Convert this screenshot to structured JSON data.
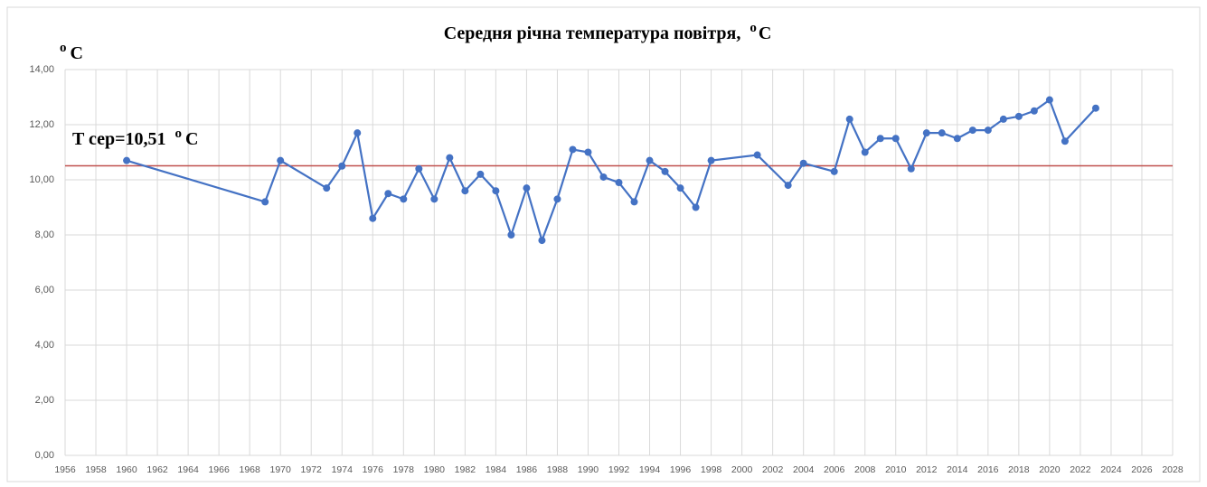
{
  "chart_data": {
    "type": "line",
    "title": {
      "text": "Середня річна температура повітря,",
      "sup": "o",
      "unit": "C"
    },
    "ylabel": {
      "sup": "o",
      "unit": "C"
    },
    "mean_line": {
      "value": 10.51,
      "color": "#c0504d",
      "label": {
        "text": "T сер=10,51",
        "sup": "o",
        "unit": "C"
      }
    },
    "x": [
      1960,
      1969,
      1970,
      1973,
      1974,
      1975,
      1976,
      1977,
      1978,
      1979,
      1980,
      1981,
      1982,
      1983,
      1984,
      1985,
      1986,
      1987,
      1988,
      1989,
      1990,
      1991,
      1992,
      1993,
      1994,
      1995,
      1996,
      1997,
      1998,
      2001,
      2003,
      2004,
      2006,
      2007,
      2008,
      2009,
      2010,
      2011,
      2012,
      2013,
      2014,
      2015,
      2016,
      2017,
      2018,
      2019,
      2020,
      2021,
      2023
    ],
    "series": [
      {
        "color": "#4472c4",
        "values": [
          10.7,
          9.2,
          10.7,
          9.7,
          10.5,
          11.7,
          8.6,
          9.5,
          9.3,
          10.4,
          9.3,
          10.8,
          9.6,
          10.2,
          9.6,
          8.0,
          9.7,
          7.8,
          9.3,
          11.1,
          11.0,
          10.1,
          9.9,
          9.2,
          10.7,
          10.3,
          9.7,
          9.0,
          10.7,
          10.9,
          9.8,
          10.6,
          10.3,
          12.2,
          11.0,
          11.5,
          11.5,
          10.4,
          11.7,
          11.7,
          11.5,
          11.8,
          11.8,
          12.2,
          12.3,
          12.5,
          12.9,
          11.4,
          12.6
        ]
      }
    ],
    "xlim": [
      1956,
      2028
    ],
    "xticks": [
      1956,
      1958,
      1960,
      1962,
      1964,
      1966,
      1968,
      1970,
      1972,
      1974,
      1976,
      1978,
      1980,
      1982,
      1984,
      1986,
      1988,
      1990,
      1992,
      1994,
      1996,
      1998,
      2000,
      2002,
      2004,
      2006,
      2008,
      2010,
      2012,
      2014,
      2016,
      2018,
      2020,
      2022,
      2024,
      2026,
      2028
    ],
    "ylim": [
      0,
      14
    ],
    "yticks": [
      {
        "value": 0,
        "label": "0,00"
      },
      {
        "value": 2,
        "label": "2,00"
      },
      {
        "value": 4,
        "label": "4,00"
      },
      {
        "value": 6,
        "label": "6,00"
      },
      {
        "value": 8,
        "label": "8,00"
      },
      {
        "value": 10,
        "label": "10,00"
      },
      {
        "value": 12,
        "label": "12,00"
      },
      {
        "value": 14,
        "label": "14,00"
      }
    ],
    "grid": true
  }
}
